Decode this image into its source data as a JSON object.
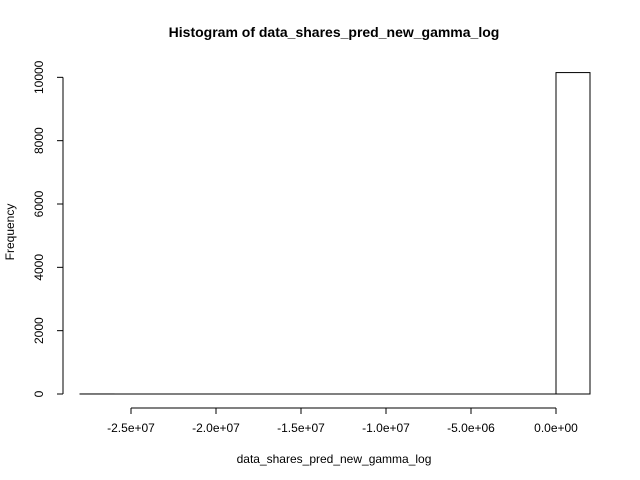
{
  "chart_data": {
    "type": "bar",
    "title": "Histogram of data_shares_pred_new_gamma_log",
    "xlabel": "data_shares_pred_new_gamma_log",
    "ylabel": "Frequency",
    "xlim": [
      -28000000,
      2000000
    ],
    "ylim": [
      0,
      10200
    ],
    "x_ticks": [
      -25000000,
      -20000000,
      -15000000,
      -10000000,
      -5000000,
      0
    ],
    "x_tick_labels": [
      "-2.5e+07",
      "-2.0e+07",
      "-1.5e+07",
      "-1.0e+07",
      "-5.0e+06",
      "0.0e+00"
    ],
    "y_ticks": [
      0,
      2000,
      4000,
      6000,
      8000,
      10000
    ],
    "y_tick_labels": [
      "0",
      "2000",
      "4000",
      "6000",
      "8000",
      "10000"
    ],
    "bins": [
      {
        "x0": -28000000,
        "x1": -26000000,
        "count": 1
      },
      {
        "x0": -26000000,
        "x1": -24000000,
        "count": 0
      },
      {
        "x0": -24000000,
        "x1": -22000000,
        "count": 0
      },
      {
        "x0": -22000000,
        "x1": -20000000,
        "count": 0
      },
      {
        "x0": -20000000,
        "x1": -18000000,
        "count": 0
      },
      {
        "x0": -18000000,
        "x1": -16000000,
        "count": 0
      },
      {
        "x0": -16000000,
        "x1": -14000000,
        "count": 0
      },
      {
        "x0": -14000000,
        "x1": -12000000,
        "count": 0
      },
      {
        "x0": -12000000,
        "x1": -10000000,
        "count": 0
      },
      {
        "x0": -10000000,
        "x1": -8000000,
        "count": 0
      },
      {
        "x0": -8000000,
        "x1": -6000000,
        "count": 0
      },
      {
        "x0": -6000000,
        "x1": -4000000,
        "count": 0
      },
      {
        "x0": -4000000,
        "x1": -2000000,
        "count": 0
      },
      {
        "x0": -2000000,
        "x1": 0,
        "count": 0
      },
      {
        "x0": 0,
        "x1": 2000000,
        "count": 10150
      }
    ],
    "grid": false,
    "legend": "none"
  }
}
